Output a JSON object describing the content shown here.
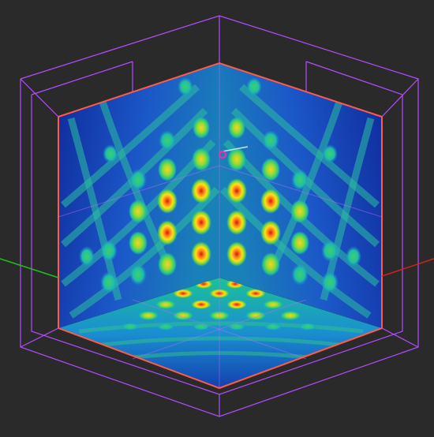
{
  "viewport": {
    "background": "#2a2a2a"
  },
  "scene": {
    "planes": [
      {
        "name": "left-back-wall",
        "colormap": "jet"
      },
      {
        "name": "right-back-wall",
        "colormap": "jet"
      },
      {
        "name": "floor-plane",
        "colormap": "jet"
      }
    ],
    "colors": {
      "bounding_box": "#b44dff",
      "plane_outline": "#ff5a4a",
      "axis_x": "#d62020",
      "axis_y": "#20c020",
      "center_marker": "#ff2aa6",
      "direction_line": "#b8e6ff"
    },
    "colormap_stops": [
      "#0a1a8a",
      "#1a3fd0",
      "#1d8fd9",
      "#1fc0a8",
      "#34c96a",
      "#b8e83a",
      "#ffd21a",
      "#ff6a14",
      "#e01010"
    ]
  }
}
